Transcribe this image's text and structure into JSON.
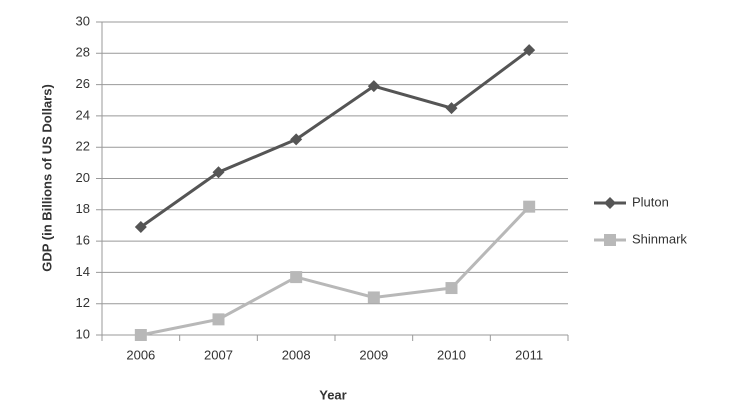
{
  "chart_data": {
    "type": "line",
    "categories": [
      "2006",
      "2007",
      "2008",
      "2009",
      "2010",
      "2011"
    ],
    "series": [
      {
        "name": "Pluton",
        "color": "#555555",
        "marker": "diamond",
        "values": [
          16.9,
          20.4,
          22.5,
          25.9,
          24.5,
          28.2
        ]
      },
      {
        "name": "Shinmark",
        "color": "#b8b8b8",
        "marker": "square",
        "values": [
          10,
          11,
          13.7,
          12.4,
          13,
          18.2
        ]
      }
    ],
    "ylim": [
      10,
      30
    ],
    "yticks": [
      10,
      12,
      14,
      16,
      18,
      20,
      22,
      24,
      26,
      28,
      30
    ],
    "y_label": "GDP (in Billions of US Dollars)",
    "x_label": "Year",
    "grid": true,
    "legend": "right"
  }
}
